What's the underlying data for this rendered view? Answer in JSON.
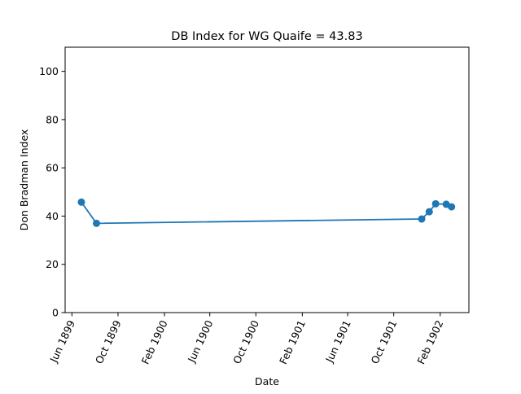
{
  "chart_data": {
    "type": "line",
    "title": "DB Index for WG Quaife = 43.83",
    "xlabel": "Date",
    "ylabel": "Don Bradman Index",
    "x_ticks": [
      "Jun 1899",
      "Oct 1899",
      "Feb 1900",
      "Jun 1900",
      "Oct 1900",
      "Feb 1901",
      "Jun 1901",
      "Oct 1901",
      "Feb 1902"
    ],
    "y_ticks": [
      0,
      20,
      40,
      60,
      80,
      100
    ],
    "xlim": [
      "1899-05-14",
      "1902-04-18"
    ],
    "ylim": [
      0,
      110
    ],
    "grid": false,
    "series_color": "#1f77b4",
    "series": [
      {
        "x": [
          "1899-06-26",
          "1899-08-05",
          "1901-12-14",
          "1902-01-03",
          "1902-01-20",
          "1902-02-17",
          "1902-03-03"
        ],
        "y": [
          45.8,
          37.0,
          38.8,
          41.8,
          45.1,
          44.9,
          43.83
        ]
      }
    ]
  }
}
